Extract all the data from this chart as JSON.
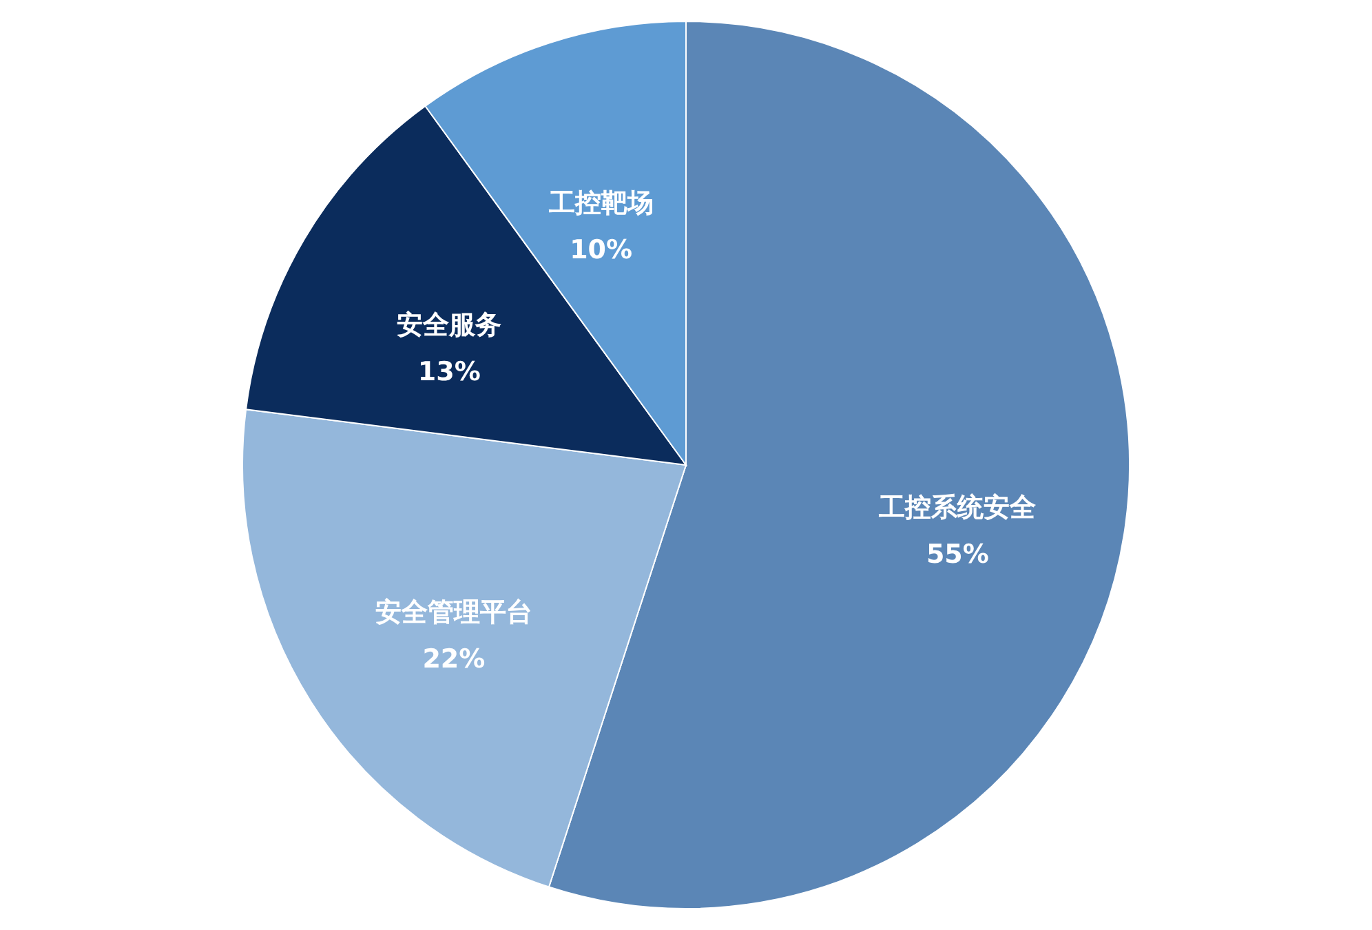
{
  "chart_data": {
    "type": "pie",
    "categories": [
      "工控系统安全",
      "安全管理平台",
      "安全服务",
      "工控靶场"
    ],
    "values": [
      55,
      22,
      13,
      10
    ],
    "value_labels": [
      "55%",
      "22%",
      "13%",
      "10%"
    ],
    "colors": [
      "#5b86b6",
      "#94b7db",
      "#0b2c5c",
      "#5e9bd3"
    ]
  }
}
